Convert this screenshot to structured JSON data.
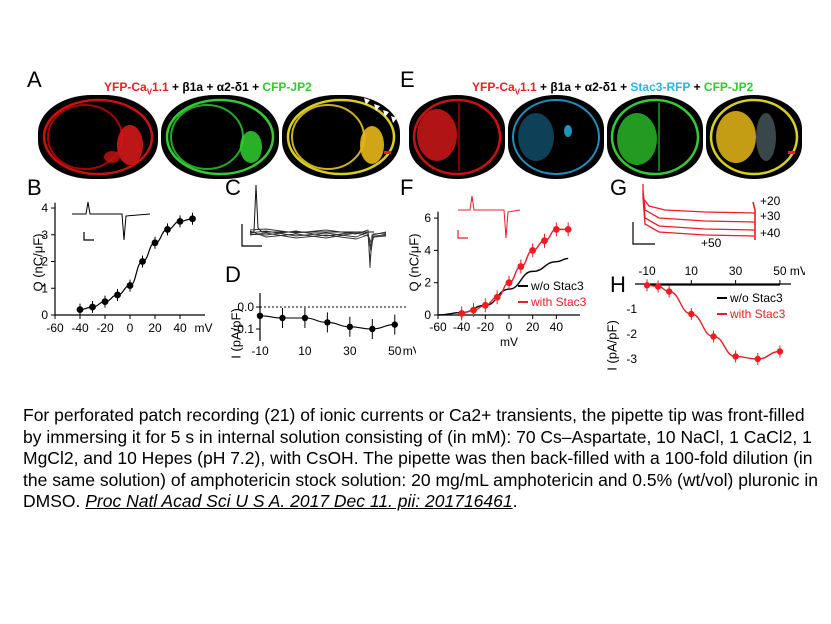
{
  "panels": {
    "A": {
      "letter": "A",
      "title": {
        "p1": "YFP-Ca",
        "p1_sub": "V",
        "p1_rest": "1.1",
        "p2": " + β1a + α2-δ1 + ",
        "p3": "CFP-JP2"
      }
    },
    "E": {
      "letter": "E",
      "title": {
        "p1": "YFP-Ca",
        "p1_sub": "V",
        "p1_rest": "1.1",
        "p2": " + β1a + α2-δ1 + ",
        "p3": "Stac3-RFP",
        "p4": " + ",
        "p5": "CFP-JP2"
      }
    },
    "B": {
      "letter": "B",
      "ylabel": "Q (nC/μF)",
      "xunit": "mV"
    },
    "C": {
      "letter": "C"
    },
    "D": {
      "letter": "D",
      "ylabel": "I (pA/pF)",
      "xunit": "mV"
    },
    "F": {
      "letter": "F",
      "ylabel": "Q (nC/μF)",
      "xlabel": "mV",
      "legend": [
        "w/o Stac3",
        "with Stac3"
      ]
    },
    "G": {
      "letter": "G",
      "trace_labels": [
        "+20",
        "+30",
        "+40",
        "+50"
      ]
    },
    "H": {
      "letter": "H",
      "ylabel": "I (pA/pF)",
      "xunit": "mV",
      "legend": [
        "w/o Stac3",
        "with Stac3"
      ]
    }
  },
  "colors": {
    "red": "#ee1c24",
    "green": "#2ecc2e",
    "cyan": "#29b6e8",
    "black": "#000000"
  },
  "chart_data": [
    {
      "panel": "B",
      "type": "scatter",
      "xlabel": "mV",
      "ylabel": "Q (nC/μF)",
      "xticks": [
        "-60",
        "-40",
        "-20",
        "0",
        "20",
        "40"
      ],
      "yticks": [
        "0",
        "1",
        "2",
        "3",
        "4"
      ],
      "xlim": [
        -60,
        60
      ],
      "ylim": [
        0,
        4.3
      ],
      "series": [
        {
          "x": [
            -40,
            -30,
            -20,
            -10,
            0,
            10,
            20,
            30,
            40,
            50
          ],
          "y": [
            0.2,
            0.3,
            0.5,
            0.75,
            1.1,
            2.0,
            2.7,
            3.2,
            3.5,
            3.6
          ]
        }
      ]
    },
    {
      "panel": "D",
      "type": "line",
      "xlabel": "mV",
      "ylabel": "I (pA/pF)",
      "xticks": [
        "-10",
        "10",
        "30",
        "50"
      ],
      "yticks": [
        "0.0",
        "-0.1"
      ],
      "xlim": [
        -10,
        55
      ],
      "ylim": [
        -0.14,
        0.02
      ],
      "series": [
        {
          "x": [
            -10,
            0,
            10,
            20,
            30,
            40,
            50
          ],
          "y": [
            -0.04,
            -0.05,
            -0.05,
            -0.07,
            -0.09,
            -0.1,
            -0.08
          ]
        }
      ]
    },
    {
      "panel": "F",
      "type": "line",
      "xlabel": "mV",
      "ylabel": "Q (nC/μF)",
      "xticks": [
        "-60",
        "-40",
        "-20",
        "0",
        "20",
        "40"
      ],
      "yticks": [
        "0",
        "2",
        "4",
        "6"
      ],
      "xlim": [
        -60,
        60
      ],
      "ylim": [
        0,
        6.5
      ],
      "series": [
        {
          "name": "w/o Stac3",
          "x": [
            -60,
            -40,
            -20,
            0,
            20,
            40,
            50
          ],
          "y": [
            0,
            0.15,
            0.6,
            1.6,
            2.7,
            3.3,
            3.5
          ]
        },
        {
          "name": "with Stac3",
          "x": [
            -40,
            -30,
            -20,
            -10,
            0,
            10,
            20,
            30,
            40,
            50
          ],
          "y": [
            0.1,
            0.3,
            0.6,
            1.1,
            2.0,
            3.0,
            4.0,
            4.6,
            5.3,
            5.3
          ]
        }
      ]
    },
    {
      "panel": "H",
      "type": "line",
      "xlabel": "mV",
      "ylabel": "I (pA/pF)",
      "xticks": [
        "-10",
        "10",
        "30",
        "50"
      ],
      "yticks": [
        "-1",
        "-2",
        "-3"
      ],
      "xlim": [
        -10,
        55
      ],
      "ylim": [
        -3.4,
        0.1
      ],
      "series": [
        {
          "name": "w/o Stac3",
          "x": [
            -10,
            0,
            10,
            20,
            30,
            40,
            50
          ],
          "y": [
            0,
            0,
            0,
            0,
            0,
            0,
            0
          ]
        },
        {
          "name": "with Stac3",
          "x": [
            -10,
            -5,
            0,
            10,
            20,
            30,
            40,
            50
          ],
          "y": [
            -0.05,
            -0.1,
            -0.3,
            -1.2,
            -2.1,
            -2.9,
            -3.0,
            -2.7
          ]
        }
      ]
    }
  ],
  "caption": {
    "text": "For perforated patch recording (21) of ionic currents or Ca2+ transients, the pipette tip was front-filled by immersing it for  5 s in internal solution consisting of (in mM): 70 Cs–Aspartate, 10 NaCl, 1 CaCl2, 1 MgCl2, and 10 Hepes (pH 7.2), with CsOH. The pipette was then back-filled with a 100-fold dilution (in the same solution) of amphotericin stock solution: 20 mg/mL amphotericin and 0.5% (wt/vol) pluronic in DMSO. ",
    "reference": "Proc Natl Acad Sci U S A. 2017 Dec 11. pii: 201716461",
    "end": "."
  }
}
